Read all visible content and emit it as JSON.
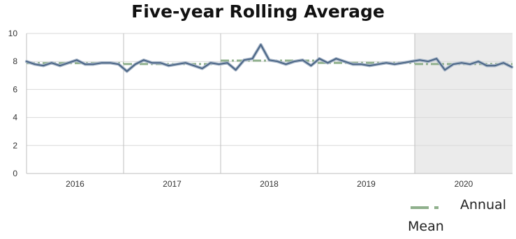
{
  "chart_data": {
    "type": "line",
    "title": "Five-year Rolling Average",
    "xlabel": "",
    "ylabel": "",
    "ylim": [
      0,
      10
    ],
    "y_ticks": [
      0,
      2,
      4,
      6,
      8,
      10
    ],
    "year_labels": [
      "2016",
      "2017",
      "2018",
      "2019",
      "2020"
    ],
    "grid": true,
    "legend_position": "bottom-right",
    "shaded_period": "2020",
    "colors": {
      "series": "#4a6585",
      "series_halo": "#a9b7c9",
      "mean": "#8fb08c",
      "shade": "#ebebeb",
      "grid": "#d9d9d9",
      "axis": "#bfbfbf"
    },
    "series": [
      {
        "key": "rolling",
        "values": [
          8.0,
          7.8,
          7.7,
          7.9,
          7.7,
          7.9,
          8.1,
          7.8,
          7.8,
          7.9,
          7.9,
          7.8,
          7.3,
          7.8,
          8.1,
          7.9,
          7.9,
          7.7,
          7.8,
          7.9,
          7.7,
          7.5,
          7.9,
          7.8,
          7.9,
          7.4,
          8.1,
          8.2,
          9.2,
          8.1,
          8.0,
          7.8,
          8.0,
          8.1,
          7.7,
          8.2,
          7.9,
          8.2,
          8.0,
          7.8,
          7.8,
          7.7,
          7.8,
          7.9,
          7.8,
          7.9,
          8.0,
          8.1,
          8.0,
          8.2,
          7.4,
          7.8,
          7.9,
          7.8,
          8.0,
          7.7,
          7.7,
          7.9,
          7.6
        ]
      },
      {
        "key": "mean",
        "name": "Annual Mean",
        "segments": [
          {
            "year": "2016",
            "value": 7.88
          },
          {
            "year": "2017",
            "value": 7.82
          },
          {
            "year": "2018",
            "value": 8.06
          },
          {
            "year": "2019",
            "value": 7.9
          },
          {
            "year": "2020",
            "value": 7.82
          }
        ]
      }
    ]
  },
  "legend": {
    "label_line1": "Annual",
    "label_line2": "Mean"
  }
}
